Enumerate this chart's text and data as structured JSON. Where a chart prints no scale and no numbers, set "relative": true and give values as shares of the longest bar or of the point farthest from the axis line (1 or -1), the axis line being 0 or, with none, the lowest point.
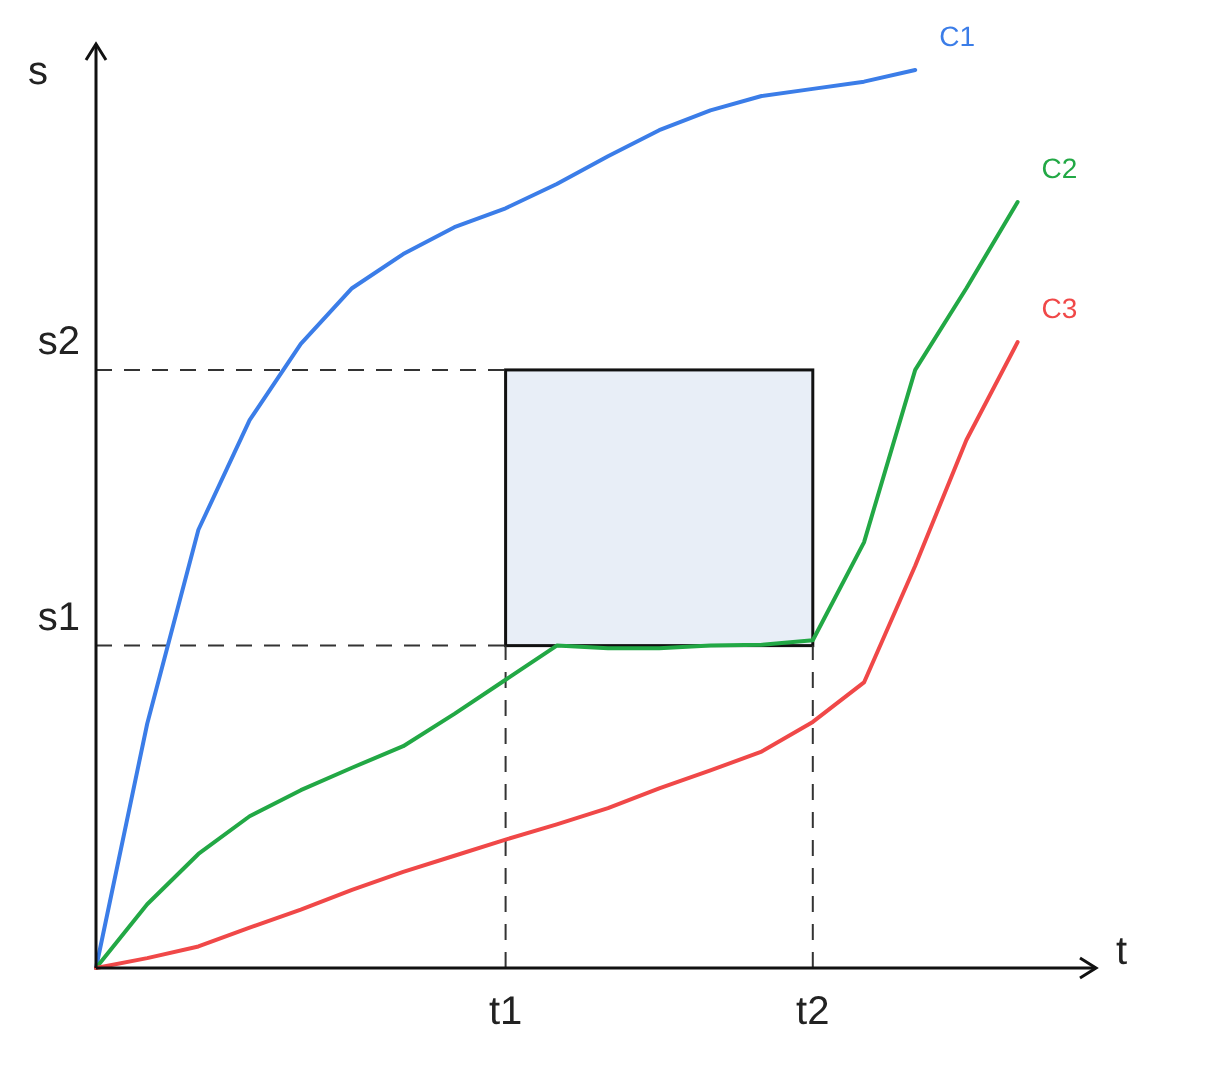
{
  "chart_data": {
    "type": "line",
    "xlabel": "t",
    "ylabel": "s",
    "relative": true,
    "categories": [
      null,
      null,
      null,
      null,
      null,
      null,
      null,
      null,
      "t1",
      null,
      null,
      null,
      null,
      null,
      "t2",
      null,
      null,
      null,
      null
    ],
    "ref_lines": [
      {
        "axis": "y",
        "value": 0.359,
        "label": "s1",
        "line_style": "dashed"
      },
      {
        "axis": "y",
        "value": 0.666,
        "label": "s2",
        "line_style": "dashed"
      }
    ],
    "line_style": "solid",
    "series": [
      {
        "name": "C1",
        "color": "#3b7de8",
        "values": [
          0,
          0.272,
          0.488,
          0.61,
          0.695,
          0.757,
          0.795,
          0.825,
          0.846,
          0.873,
          0.904,
          0.933,
          0.955,
          0.971,
          0.979,
          0.987,
          1,
          null,
          null
        ]
      },
      {
        "name": "C2",
        "color": "#22a845",
        "values": [
          0,
          0.071,
          0.127,
          0.169,
          0.198,
          0.223,
          0.247,
          0.283,
          0.321,
          0.359,
          0.356,
          0.356,
          0.359,
          0.36,
          0.365,
          0.474,
          0.666,
          0.757,
          0.853
        ]
      },
      {
        "name": "C3",
        "color": "#f04848",
        "values": [
          0,
          0.011,
          0.024,
          0.045,
          0.065,
          0.087,
          0.107,
          0.125,
          0.143,
          0.16,
          0.178,
          0.2,
          0.22,
          0.241,
          0.274,
          0.318,
          0.448,
          0.588,
          0.697
        ]
      }
    ]
  }
}
